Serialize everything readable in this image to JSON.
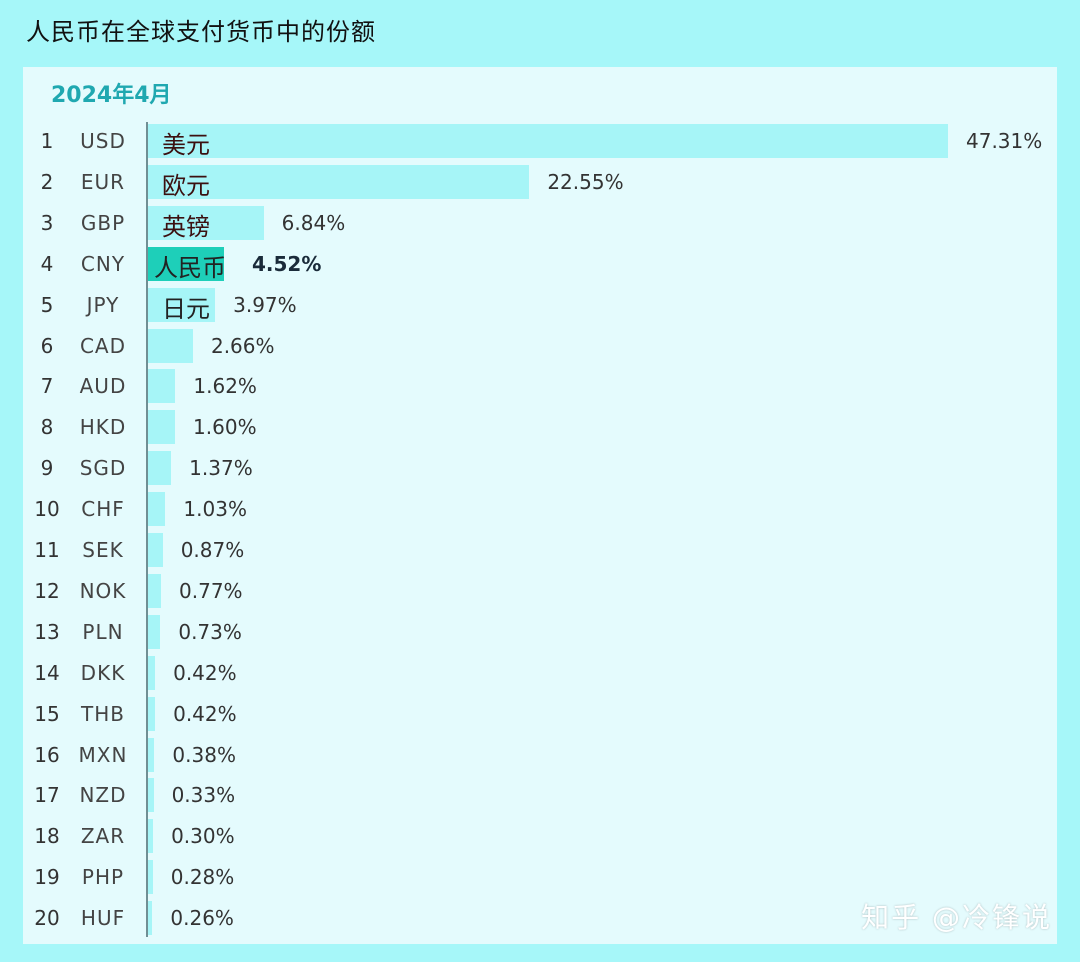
{
  "page_title": "人民币在全球支付货币中的份额",
  "watermark": "知乎 @冷锋说",
  "colors": {
    "background": "#a6f7f9",
    "panel": "#e4fbfd",
    "bar": "#a6f5f7",
    "bar_highlight": "#1ecfb9",
    "subtitle": "#1fa8b0"
  },
  "chart_data": {
    "type": "bar",
    "orientation": "horizontal",
    "title": "2024年4月",
    "xlim": [
      0,
      47.31
    ],
    "value_suffix": "%",
    "highlight": "CNY",
    "ranks": [
      "1",
      "2",
      "3",
      "4",
      "5",
      "6",
      "7",
      "8",
      "9",
      "10",
      "11",
      "12",
      "13",
      "14",
      "15",
      "16",
      "17",
      "18",
      "19",
      "20"
    ],
    "categories": [
      "USD",
      "EUR",
      "GBP",
      "CNY",
      "JPY",
      "CAD",
      "AUD",
      "HKD",
      "SGD",
      "CHF",
      "SEK",
      "NOK",
      "PLN",
      "DKK",
      "THB",
      "MXN",
      "NZD",
      "ZAR",
      "PHP",
      "HUF"
    ],
    "bar_labels": [
      "美元",
      "欧元",
      "英镑",
      "人民币",
      "日元",
      "",
      "",
      "",
      "",
      "",
      "",
      "",
      "",
      "",
      "",
      "",
      "",
      "",
      "",
      ""
    ],
    "values": [
      47.31,
      22.55,
      6.84,
      4.52,
      3.97,
      2.66,
      1.62,
      1.6,
      1.37,
      1.03,
      0.87,
      0.77,
      0.73,
      0.42,
      0.42,
      0.38,
      0.33,
      0.3,
      0.28,
      0.26
    ],
    "value_labels": [
      "47.31%",
      "22.55%",
      "6.84%",
      "4.52%",
      "3.97%",
      "2.66%",
      "1.62%",
      "1.60%",
      "1.37%",
      "1.03%",
      "0.87%",
      "0.77%",
      "0.73%",
      "0.42%",
      "0.42%",
      "0.38%",
      "0.33%",
      "0.30%",
      "0.28%",
      "0.26%"
    ]
  }
}
